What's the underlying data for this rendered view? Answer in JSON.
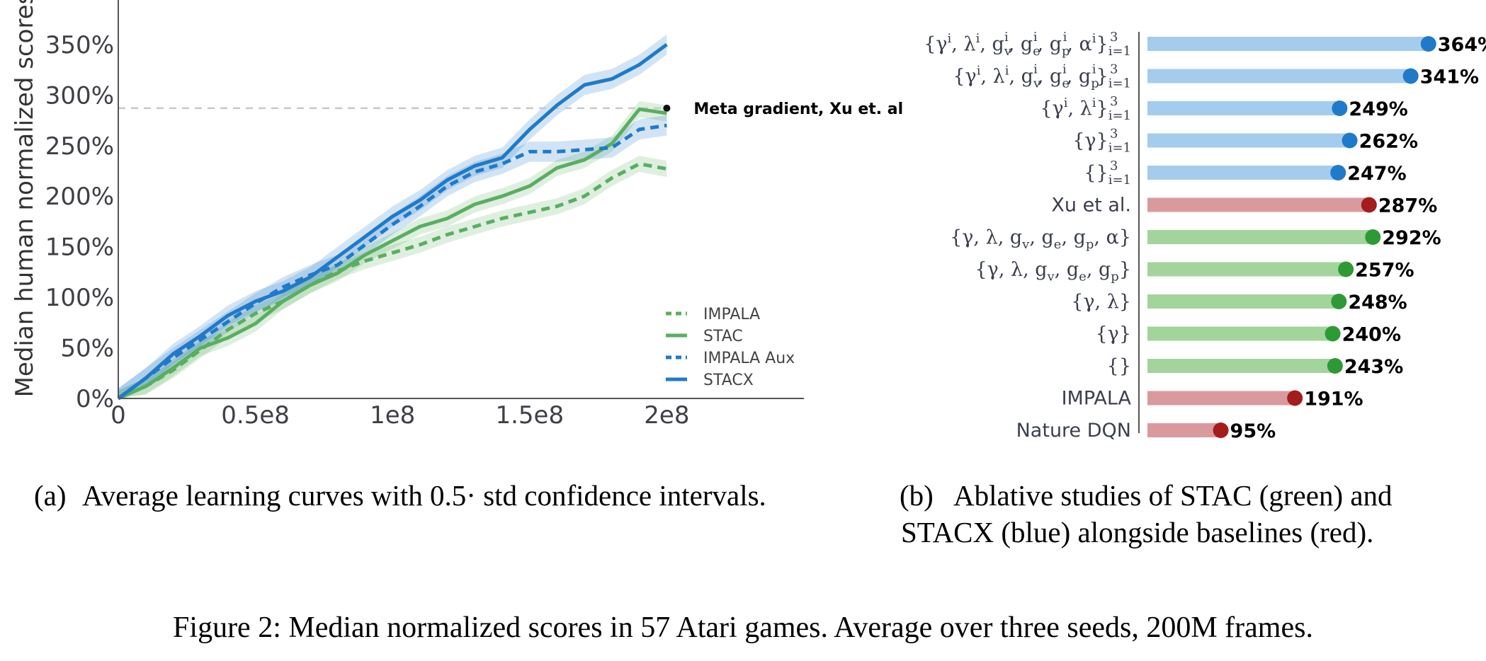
{
  "chart_data": [
    {
      "type": "line",
      "title": "",
      "xlabel": "",
      "ylabel": "Median human normalized scores",
      "xlim": [
        0,
        250000000
      ],
      "ylim": [
        0,
        380
      ],
      "x_ticks": [
        {
          "value": 0,
          "label": "0"
        },
        {
          "value": 50000000,
          "label": "0.5e8"
        },
        {
          "value": 100000000,
          "label": "1e8"
        },
        {
          "value": 150000000,
          "label": "1.5e8"
        },
        {
          "value": 200000000,
          "label": "2e8"
        }
      ],
      "y_ticks": [
        {
          "value": 0,
          "label": "0%"
        },
        {
          "value": 50,
          "label": "50%"
        },
        {
          "value": 100,
          "label": "100%"
        },
        {
          "value": 150,
          "label": "150%"
        },
        {
          "value": 200,
          "label": "200%"
        },
        {
          "value": 250,
          "label": "250%"
        },
        {
          "value": 300,
          "label": "300%"
        },
        {
          "value": 350,
          "label": "350%"
        }
      ],
      "reference_line": {
        "value": 287,
        "label": "Meta gradient, Xu et. al"
      },
      "x_frames_millions": [
        0,
        10,
        20,
        30,
        40,
        50,
        60,
        70,
        80,
        90,
        100,
        110,
        120,
        130,
        140,
        150,
        160,
        170,
        180,
        190,
        200
      ],
      "series": [
        {
          "name": "IMPALA",
          "style": "dashed",
          "color": "#5aae61",
          "band": 8,
          "values": [
            0,
            12,
            28,
            48,
            68,
            84,
            96,
            112,
            126,
            136,
            144,
            152,
            162,
            170,
            178,
            184,
            190,
            200,
            218,
            232,
            227
          ]
        },
        {
          "name": "STAC",
          "style": "solid",
          "color": "#5aae61",
          "band": 8,
          "values": [
            0,
            12,
            30,
            50,
            60,
            74,
            96,
            112,
            124,
            142,
            156,
            170,
            178,
            192,
            200,
            210,
            228,
            236,
            252,
            286,
            282
          ]
        },
        {
          "name": "IMPALA Aux",
          "style": "dashed",
          "color": "#1f7ac9",
          "band": 10,
          "values": [
            0,
            20,
            40,
            58,
            76,
            94,
            110,
            122,
            132,
            152,
            172,
            190,
            210,
            224,
            232,
            244,
            244,
            246,
            248,
            266,
            270
          ]
        },
        {
          "name": "STACX",
          "style": "solid",
          "color": "#1f7ac9",
          "band": 10,
          "values": [
            0,
            20,
            44,
            62,
            82,
            96,
            106,
            120,
            140,
            160,
            180,
            196,
            216,
            230,
            238,
            266,
            290,
            310,
            316,
            330,
            350
          ]
        }
      ],
      "legend_position": "lower-right",
      "grid": false
    },
    {
      "type": "bar",
      "orientation": "horizontal",
      "title": "",
      "xlabel": "",
      "ylabel": "",
      "xlim": [
        0,
        400
      ],
      "bars": [
        {
          "label": "{γ^i, λ^i, g_v^i, g_e^i, g_p^i, α^i}_{i=1}^3",
          "value": 364,
          "value_label": "364%",
          "group": "STACX"
        },
        {
          "label": "{γ^i, λ^i, g_v^i, g_e^i, g_p^i}_{i=1}^3",
          "value": 341,
          "value_label": "341%",
          "group": "STACX"
        },
        {
          "label": "{γ^i, λ^i}_{i=1}^3",
          "value": 249,
          "value_label": "249%",
          "group": "STACX"
        },
        {
          "label": "{γ}_{i=1}^3",
          "value": 262,
          "value_label": "262%",
          "group": "STACX"
        },
        {
          "label": "{}_{i=1}^3",
          "value": 247,
          "value_label": "247%",
          "group": "STACX"
        },
        {
          "label": "Xu et al.",
          "value": 287,
          "value_label": "287%",
          "group": "baseline"
        },
        {
          "label": "{γ, λ, g_v, g_e, g_p, α}",
          "value": 292,
          "value_label": "292%",
          "group": "STAC"
        },
        {
          "label": "{γ, λ, g_v, g_e, g_p}",
          "value": 257,
          "value_label": "257%",
          "group": "STAC"
        },
        {
          "label": "{γ, λ}",
          "value": 248,
          "value_label": "248%",
          "group": "STAC"
        },
        {
          "label": "{γ}",
          "value": 240,
          "value_label": "240%",
          "group": "STAC"
        },
        {
          "label": "{}",
          "value": 243,
          "value_label": "243%",
          "group": "STAC"
        },
        {
          "label": "IMPALA",
          "value": 191,
          "value_label": "191%",
          "group": "baseline"
        },
        {
          "label": "Nature DQN",
          "value": 95,
          "value_label": "95%",
          "group": "baseline"
        }
      ],
      "group_colors": {
        "STACX": {
          "bar": "#a3cced",
          "dot": "#1f7ac9"
        },
        "STAC": {
          "bar": "#a3d49b",
          "dot": "#2e9a36"
        },
        "baseline": {
          "bar": "#d99a9e",
          "dot": "#a51c1c"
        }
      }
    }
  ],
  "captions": {
    "a_prefix": "(a)",
    "a_text": "Average learning curves with 0.5· std confidence intervals.",
    "b_prefix": "(b)",
    "b_line1": "Ablative studies of STAC (green) and",
    "b_line2": "STACX (blue) alongside baselines (red).",
    "figure": "Figure 2: Median normalized scores in 57 Atari games. Average over three seeds, 200M frames."
  }
}
